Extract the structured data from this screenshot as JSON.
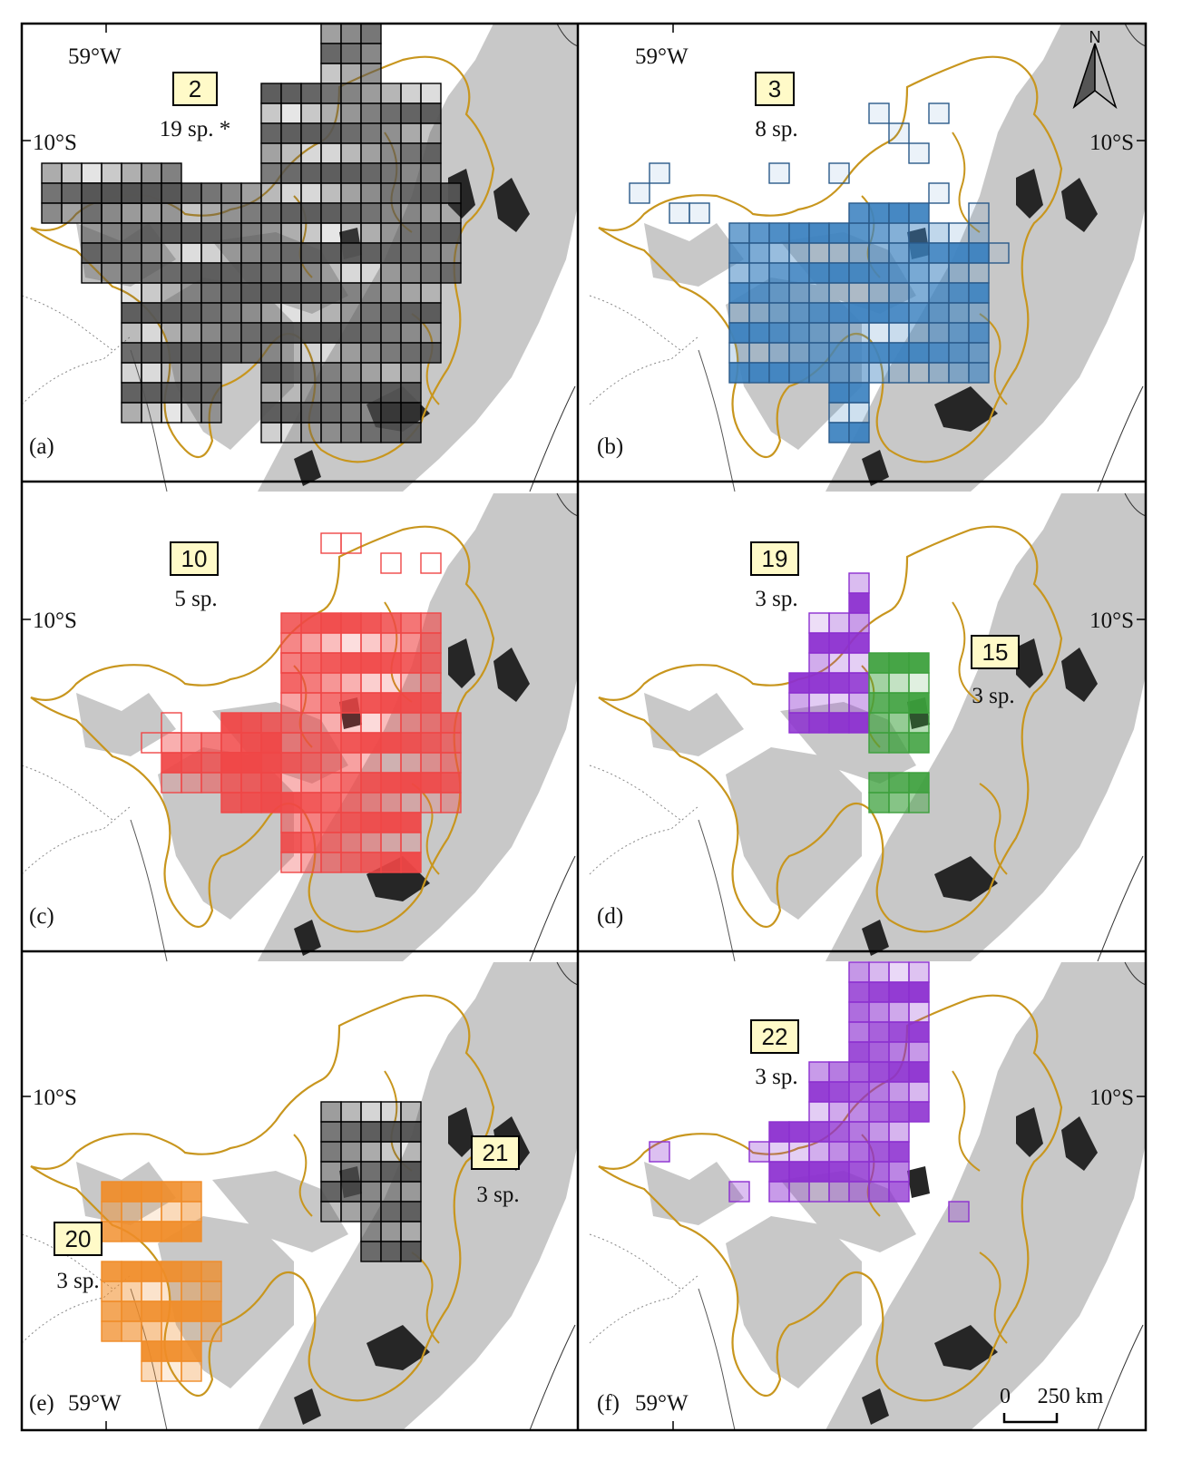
{
  "colors": {
    "frame": "#000000",
    "relief_light": "#c8c8c8",
    "relief_dark": "#262626",
    "biome_outline": "#c8961e",
    "label_box_fill": "#fffac8",
    "panel_a": "#555555",
    "panel_b": "#3c82c0",
    "panel_c": "#f04646",
    "panel_d_19": "#8c2fd0",
    "panel_d_15": "#3ca03c",
    "panel_e_20": "#f08c28",
    "panel_e_21": "#505050",
    "panel_f_22": "#8c2fd0"
  },
  "panels": [
    {
      "letter": "(a)",
      "groups": [
        {
          "id": "2",
          "species": "19 sp. *"
        }
      ],
      "coord_labels": [
        "59°W",
        "10°S"
      ]
    },
    {
      "letter": "(b)",
      "groups": [
        {
          "id": "3",
          "species": "8 sp."
        }
      ],
      "coord_labels": [
        "59°W",
        "10°S"
      ]
    },
    {
      "letter": "(c)",
      "groups": [
        {
          "id": "10",
          "species": "5 sp."
        }
      ],
      "coord_labels": [
        "10°S"
      ]
    },
    {
      "letter": "(d)",
      "groups": [
        {
          "id": "19",
          "species": "3 sp."
        },
        {
          "id": "15",
          "species": "3 sp."
        }
      ],
      "coord_labels": [
        "10°S"
      ]
    },
    {
      "letter": "(e)",
      "groups": [
        {
          "id": "20",
          "species": "3 sp."
        },
        {
          "id": "21",
          "species": "3 sp."
        }
      ],
      "coord_labels": [
        "10°S",
        "59°W"
      ]
    },
    {
      "letter": "(f)",
      "groups": [
        {
          "id": "22",
          "species": "3 sp."
        }
      ],
      "coord_labels": [
        "10°S",
        "59°W"
      ]
    }
  ],
  "north_arrow": {
    "letter": "N"
  },
  "scale_bar": {
    "zero": "0",
    "distance": "250 km"
  }
}
